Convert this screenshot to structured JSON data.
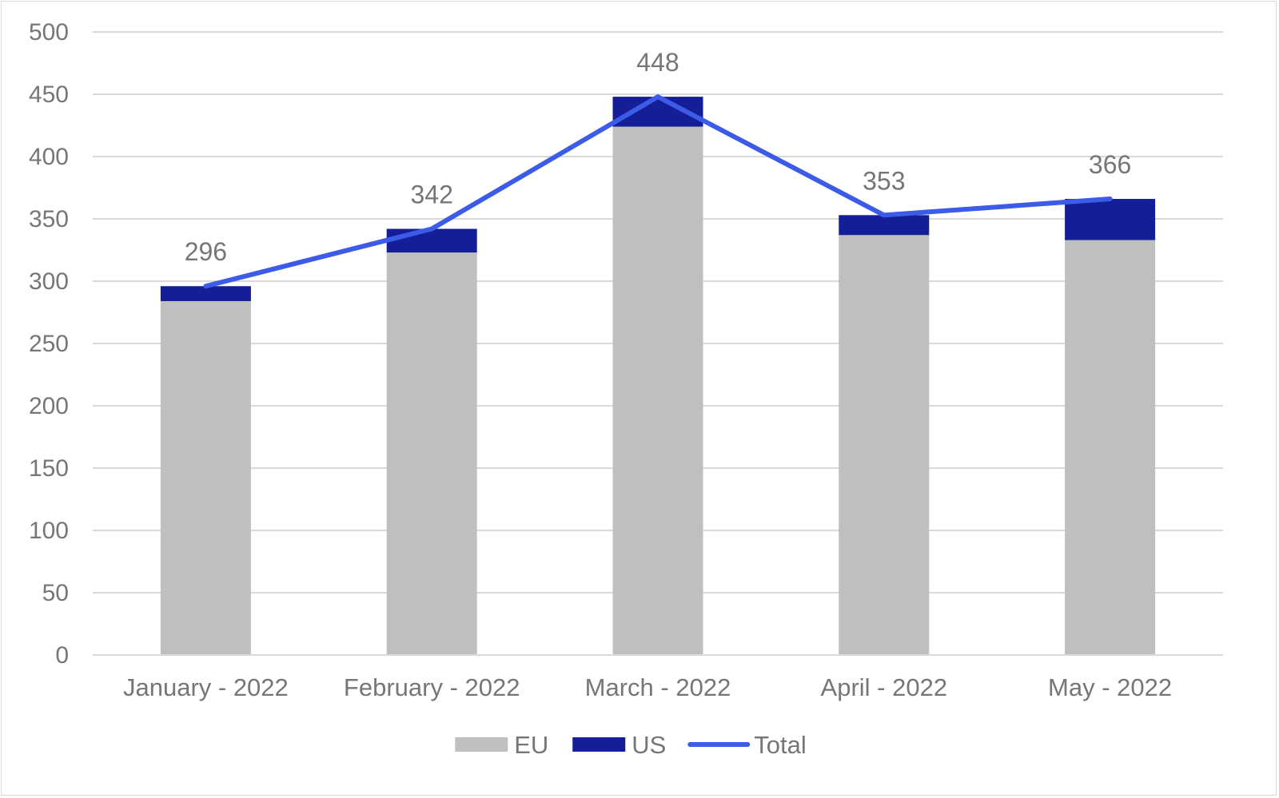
{
  "chart_data": {
    "type": "bar",
    "stacked": true,
    "title": "",
    "xlabel": "",
    "ylabel": "",
    "categories": [
      "January - 2022",
      "February - 2022",
      "March - 2022",
      "April - 2022",
      "May - 2022"
    ],
    "series": [
      {
        "name": "EU",
        "kind": "bar",
        "color": "#bfbfbf",
        "values": [
          284,
          323,
          424,
          337,
          333
        ]
      },
      {
        "name": "US",
        "kind": "bar",
        "color": "#141e96",
        "values": [
          12,
          19,
          24,
          16,
          33
        ]
      },
      {
        "name": "Total",
        "kind": "line",
        "color": "#3b5be8",
        "values": [
          296,
          342,
          448,
          353,
          366
        ]
      }
    ],
    "data_labels": [
      "296",
      "342",
      "448",
      "353",
      "366"
    ],
    "ylim": [
      0,
      500
    ],
    "yticks": [
      0,
      50,
      100,
      150,
      200,
      250,
      300,
      350,
      400,
      450,
      500
    ],
    "grid": true,
    "gridline_color": "#d9d9d9",
    "legend_position": "bottom"
  }
}
